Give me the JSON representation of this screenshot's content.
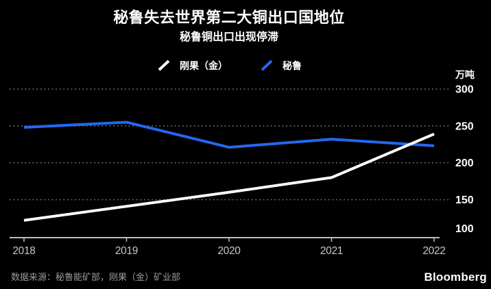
{
  "title": "秘鲁失去世界第二大铜出口国地位",
  "subtitle": "秘鲁铜出口出现停滞",
  "legend": [
    {
      "key": "congo",
      "label": "刚果（金）",
      "color": "#ffffff"
    },
    {
      "key": "peru",
      "label": "秘鲁",
      "color": "#2368f0"
    }
  ],
  "chart_data": {
    "type": "line",
    "title": "秘鲁失去世界第二大铜出口国地位",
    "subtitle": "秘鲁铜出口出现停滞",
    "x": [
      "2018",
      "2019",
      "2020",
      "2021",
      "2022"
    ],
    "series": [
      {
        "key": "congo",
        "name": "刚果（金）",
        "color": "#ffffff",
        "values": [
          122,
          141,
          160,
          180,
          239
        ]
      },
      {
        "key": "peru",
        "name": "秘鲁",
        "color": "#2368f0",
        "values": [
          248,
          255,
          221,
          232,
          223
        ]
      }
    ],
    "unit_label": "万吨",
    "ylabel": "万吨",
    "ylim": [
      100,
      300
    ],
    "yticks": [
      100,
      150,
      200,
      250,
      300
    ],
    "grid": "horizontal-dotted",
    "legend_position": "top-center",
    "background": "#000000"
  },
  "source": "数据来源：秘鲁能矿部，刚果（金）矿业部",
  "branding": "Bloomberg",
  "colors": {
    "background": "#000000",
    "title_text": "#ffffff",
    "congo_line": "#ffffff",
    "peru_line": "#2368f0",
    "grid": "#707070",
    "axis": "#bfbfbf",
    "x_tick_label": "#c9c9c9",
    "y_tick_label": "#ffffff",
    "source_text": "#9b9b9b",
    "logo_text": "#ffffff"
  }
}
